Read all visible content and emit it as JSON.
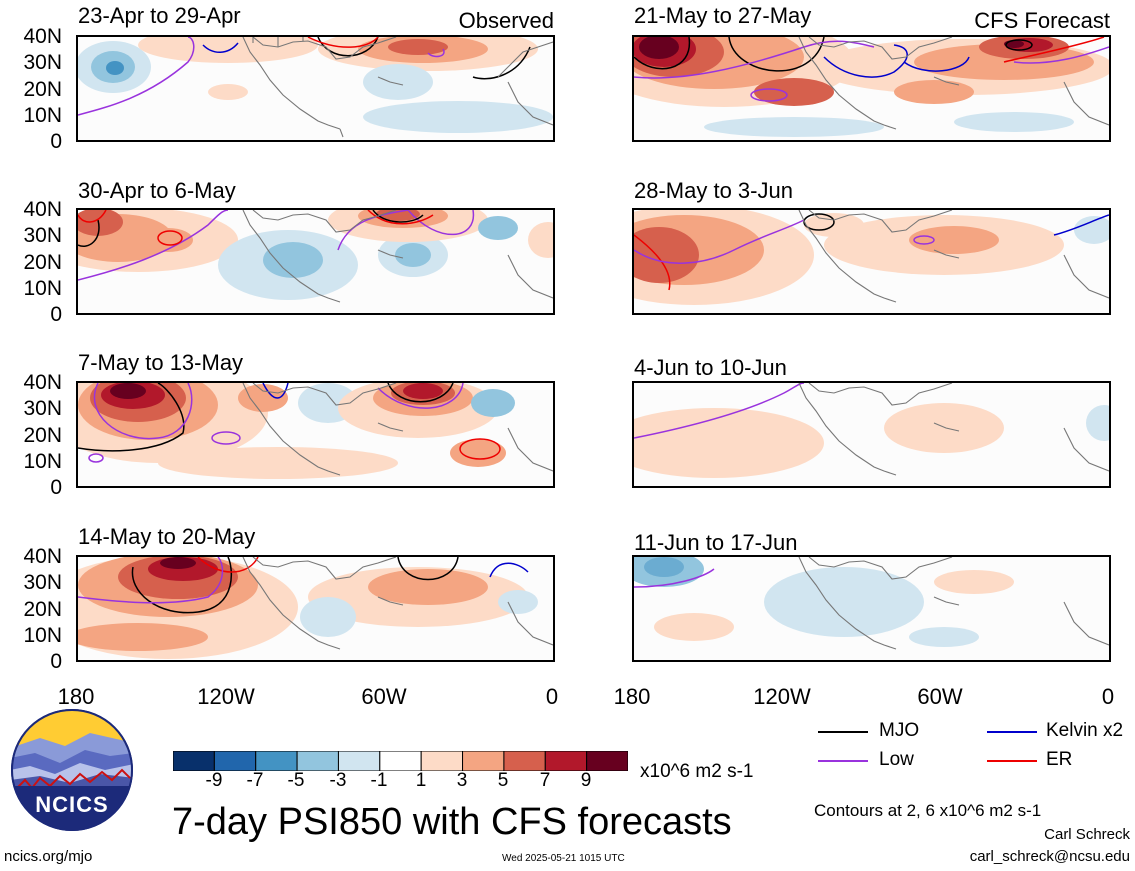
{
  "figure": {
    "title": "7-day PSI850 with CFS forecasts",
    "observed_label": "Observed",
    "forecast_label": "CFS Forecast",
    "contours_note": "Contours at 2, 6 x10^6 m2 s-1",
    "author": "Carl Schreck",
    "email": "carl_schreck@ncsu.edu",
    "url": "ncics.org/mjo",
    "timestamp": "Wed 2025-05-21 1015 UTC",
    "logo_text": "NCICS"
  },
  "axes": {
    "lat_ticks": [
      "40N",
      "30N",
      "20N",
      "10N",
      "0"
    ],
    "lon_ticks": [
      "180",
      "120W",
      "60W",
      "0"
    ]
  },
  "panels_left": [
    {
      "label": "23-Apr to 29-Apr"
    },
    {
      "label": "30-Apr to 6-May"
    },
    {
      "label": "7-May to 13-May"
    },
    {
      "label": "14-May to 20-May"
    }
  ],
  "panels_right": [
    {
      "label": "21-May to 27-May"
    },
    {
      "label": "28-May to 3-Jun"
    },
    {
      "label": "4-Jun to 10-Jun"
    },
    {
      "label": "11-Jun to 17-Jun"
    }
  ],
  "colorbar": {
    "ticks": [
      "-9",
      "-7",
      "-5",
      "-3",
      "-1",
      "1",
      "3",
      "5",
      "7",
      "9"
    ],
    "units": "x10^6 m2 s-1",
    "colors": [
      "#08306b",
      "#2166ac",
      "#4393c3",
      "#92c5de",
      "#d1e5f0",
      "#ffffff",
      "#fddbc7",
      "#f4a582",
      "#d6604d",
      "#b2182b",
      "#67001f"
    ]
  },
  "legend": [
    {
      "label": "MJO",
      "color": "#000000"
    },
    {
      "label": "Kelvin x2",
      "color": "#0000cc"
    },
    {
      "label": "Low",
      "color": "#9933dd"
    },
    {
      "label": "ER",
      "color": "#ee0000"
    }
  ]
}
